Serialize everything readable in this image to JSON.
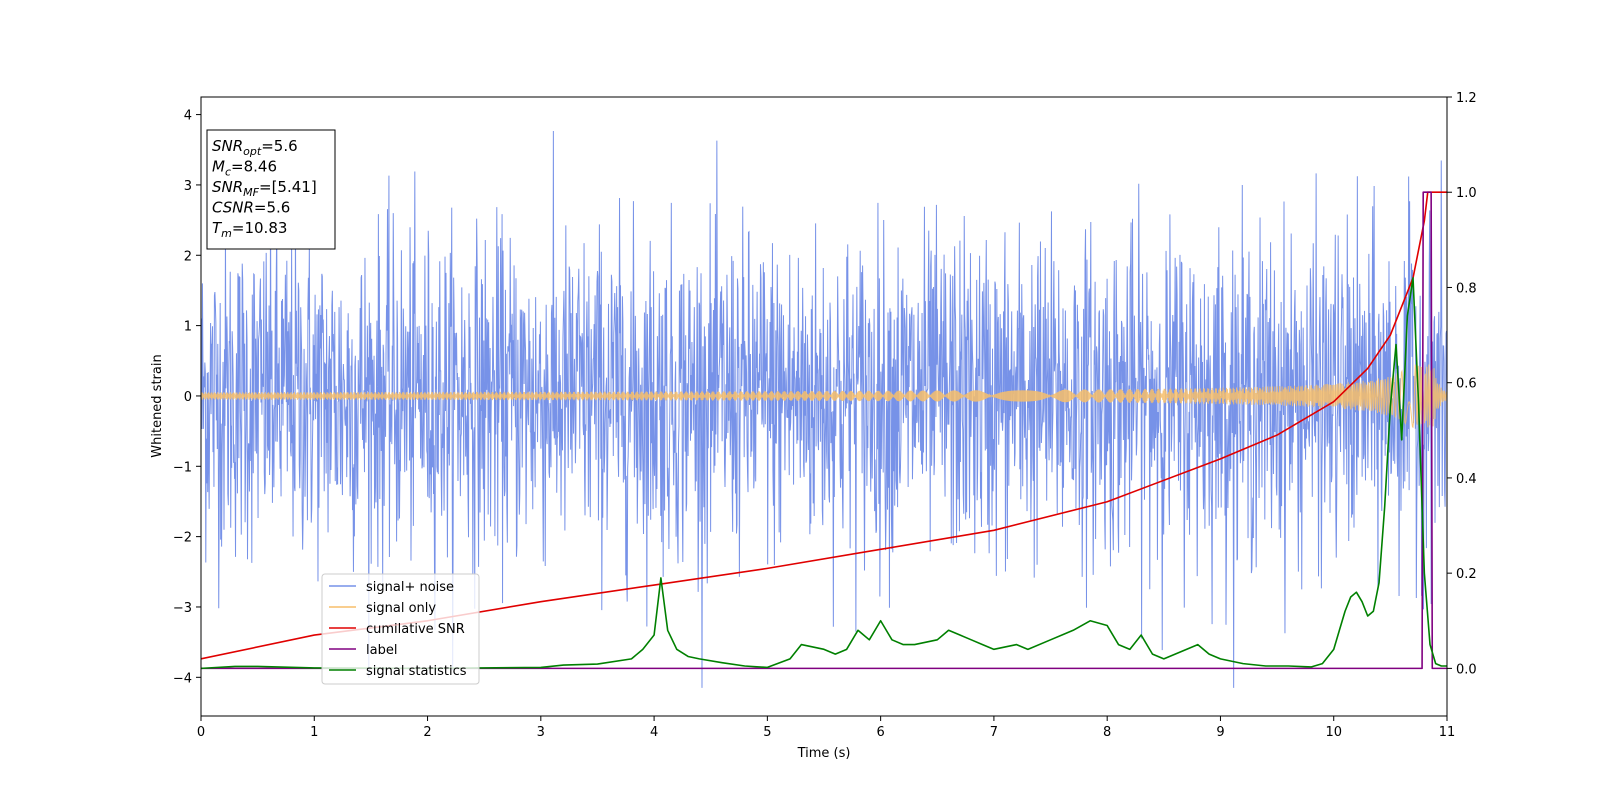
{
  "chart_data": {
    "type": "line",
    "xlabel": "Time (s)",
    "ylabel": "Whitened strain",
    "xlim": [
      0,
      11
    ],
    "ylim": [
      -4.55,
      4.25
    ],
    "y2lim": [
      -0.1,
      1.2
    ],
    "x_ticks": [
      "0",
      "1",
      "2",
      "3",
      "4",
      "5",
      "6",
      "7",
      "8",
      "9",
      "10",
      "11"
    ],
    "y_ticks": [
      "−4",
      "−3",
      "−2",
      "−1",
      "0",
      "1",
      "2",
      "3",
      "4"
    ],
    "y2_ticks": [
      "0.0",
      "0.2",
      "0.4",
      "0.6",
      "0.8",
      "1.0",
      "1.2"
    ],
    "legend_position": "lower-left",
    "grid": false,
    "series": [
      {
        "name": "signal+ noise",
        "color": "#7792e8",
        "axis": "left",
        "style": "noise band, amplitude ≈ ±2 with peaks to ±3.8"
      },
      {
        "name": "signal only",
        "color": "#f7be6a",
        "axis": "left",
        "style": "chirp, amplitude grows from ~0.02 to ~0.45 near t≈10.8"
      },
      {
        "name": "cumilative SNR",
        "color": "#e00000",
        "axis": "right",
        "x": [
          0,
          1,
          2,
          3,
          4,
          5,
          6,
          7,
          8,
          9,
          9.5,
          10,
          10.3,
          10.5,
          10.7,
          10.8,
          10.83,
          11
        ],
        "y": [
          0.02,
          0.07,
          0.1,
          0.14,
          0.175,
          0.21,
          0.25,
          0.29,
          0.35,
          0.44,
          0.49,
          0.56,
          0.63,
          0.7,
          0.82,
          0.94,
          1.0,
          1.0
        ]
      },
      {
        "name": "label",
        "color": "#800080",
        "axis": "right",
        "x": [
          0,
          10.78,
          10.79,
          10.86,
          10.87,
          11
        ],
        "y": [
          0,
          0,
          1,
          1,
          0,
          0
        ]
      },
      {
        "name": "signal statistics",
        "color": "#008000",
        "axis": "right",
        "x": [
          0,
          0.3,
          0.5,
          1,
          2,
          3,
          3.2,
          3.5,
          3.8,
          3.9,
          4.0,
          4.06,
          4.12,
          4.2,
          4.3,
          4.4,
          4.6,
          4.8,
          5.0,
          5.2,
          5.3,
          5.5,
          5.6,
          5.7,
          5.8,
          5.9,
          6.0,
          6.1,
          6.2,
          6.3,
          6.5,
          6.6,
          6.7,
          6.8,
          6.9,
          7.0,
          7.2,
          7.3,
          7.5,
          7.7,
          7.85,
          8.0,
          8.1,
          8.2,
          8.3,
          8.4,
          8.5,
          8.6,
          8.8,
          8.9,
          9.0,
          9.2,
          9.4,
          9.6,
          9.8,
          9.9,
          10.0,
          10.05,
          10.1,
          10.15,
          10.2,
          10.25,
          10.3,
          10.35,
          10.4,
          10.45,
          10.5,
          10.55,
          10.6,
          10.65,
          10.7,
          10.75,
          10.8,
          10.85,
          10.9,
          10.95,
          11
        ],
        "y": [
          0,
          0.004,
          0.004,
          0.001,
          0.0,
          0.002,
          0.007,
          0.009,
          0.02,
          0.04,
          0.07,
          0.19,
          0.08,
          0.04,
          0.025,
          0.02,
          0.012,
          0.005,
          0.002,
          0.02,
          0.05,
          0.04,
          0.03,
          0.04,
          0.08,
          0.06,
          0.1,
          0.06,
          0.05,
          0.05,
          0.06,
          0.08,
          0.07,
          0.06,
          0.05,
          0.04,
          0.05,
          0.04,
          0.06,
          0.08,
          0.1,
          0.09,
          0.05,
          0.04,
          0.07,
          0.03,
          0.02,
          0.03,
          0.05,
          0.03,
          0.02,
          0.01,
          0.005,
          0.005,
          0.003,
          0.01,
          0.04,
          0.08,
          0.12,
          0.15,
          0.16,
          0.14,
          0.11,
          0.12,
          0.18,
          0.34,
          0.55,
          0.68,
          0.48,
          0.74,
          0.82,
          0.55,
          0.2,
          0.05,
          0.01,
          0.005,
          0.005
        ]
      }
    ],
    "annotation_lines": [
      {
        "main": "SNR",
        "sub": "opt",
        "value": "=5.6"
      },
      {
        "main": "M",
        "sub": "c",
        "value": "=8.46"
      },
      {
        "main": "SNR",
        "sub": "MF",
        "value": "=[5.41]"
      },
      {
        "main": "CSNR",
        "sub": "",
        "value": "=5.6"
      },
      {
        "main": "T",
        "sub": "m",
        "value": "=10.83"
      }
    ]
  }
}
